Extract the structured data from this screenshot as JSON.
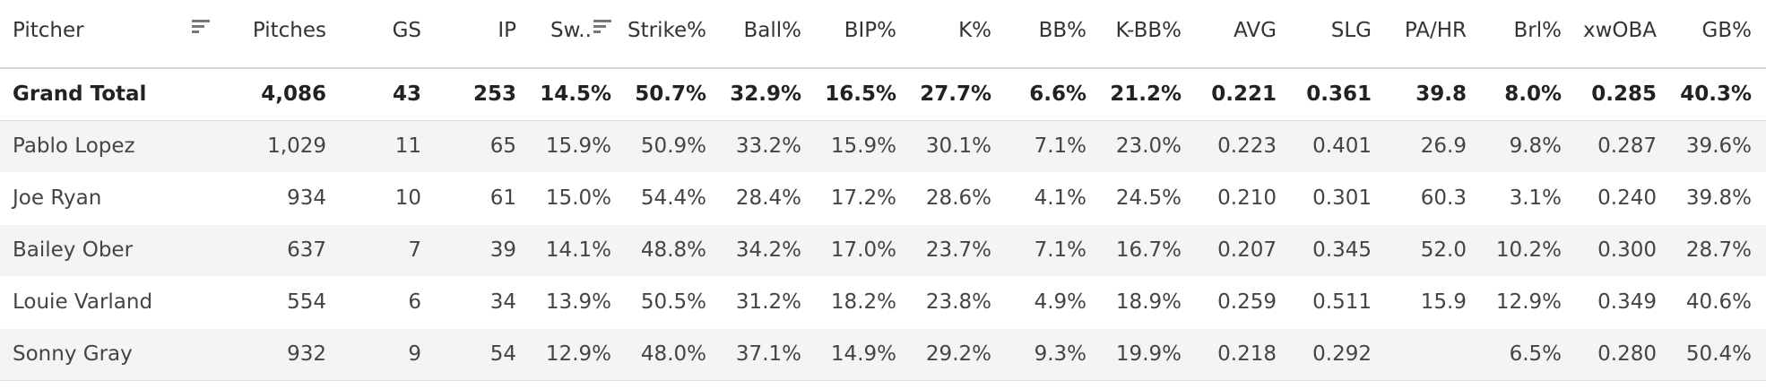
{
  "table": {
    "columns": [
      {
        "key": "pitcher",
        "label": "Pitcher"
      },
      {
        "key": "pitches",
        "label": "Pitches"
      },
      {
        "key": "gs",
        "label": "GS"
      },
      {
        "key": "ip",
        "label": "IP"
      },
      {
        "key": "sw",
        "label": "Sw.."
      },
      {
        "key": "strike",
        "label": "Strike%"
      },
      {
        "key": "ball",
        "label": "Ball%"
      },
      {
        "key": "bip",
        "label": "BIP%"
      },
      {
        "key": "k",
        "label": "K%"
      },
      {
        "key": "bb",
        "label": "BB%"
      },
      {
        "key": "kbb",
        "label": "K-BB%"
      },
      {
        "key": "avg",
        "label": "AVG"
      },
      {
        "key": "slg",
        "label": "SLG"
      },
      {
        "key": "pahr",
        "label": "PA/HR"
      },
      {
        "key": "brl",
        "label": "Brl%"
      },
      {
        "key": "xwoba",
        "label": "xwOBA"
      },
      {
        "key": "gb",
        "label": "GB%"
      }
    ],
    "total": [
      "Grand Total",
      "4,086",
      "43",
      "253",
      "14.5%",
      "50.7%",
      "32.9%",
      "16.5%",
      "27.7%",
      "6.6%",
      "21.2%",
      "0.221",
      "0.361",
      "39.8",
      "8.0%",
      "0.285",
      "40.3%"
    ],
    "rows": [
      [
        "Pablo Lopez",
        "1,029",
        "11",
        "65",
        "15.9%",
        "50.9%",
        "33.2%",
        "15.9%",
        "30.1%",
        "7.1%",
        "23.0%",
        "0.223",
        "0.401",
        "26.9",
        "9.8%",
        "0.287",
        "39.6%"
      ],
      [
        "Joe Ryan",
        "934",
        "10",
        "61",
        "15.0%",
        "54.4%",
        "28.4%",
        "17.2%",
        "28.6%",
        "4.1%",
        "24.5%",
        "0.210",
        "0.301",
        "60.3",
        "3.1%",
        "0.240",
        "39.8%"
      ],
      [
        "Bailey Ober",
        "637",
        "7",
        "39",
        "14.1%",
        "48.8%",
        "34.2%",
        "17.0%",
        "23.7%",
        "7.1%",
        "16.7%",
        "0.207",
        "0.345",
        "52.0",
        "10.2%",
        "0.300",
        "28.7%"
      ],
      [
        "Louie Varland",
        "554",
        "6",
        "34",
        "13.9%",
        "50.5%",
        "31.2%",
        "18.2%",
        "23.8%",
        "4.9%",
        "18.9%",
        "0.259",
        "0.511",
        "15.9",
        "12.9%",
        "0.349",
        "40.6%"
      ],
      [
        "Sonny Gray",
        "932",
        "9",
        "54",
        "12.9%",
        "48.0%",
        "37.1%",
        "14.9%",
        "29.2%",
        "9.3%",
        "19.9%",
        "0.218",
        "0.292",
        "",
        "6.5%",
        "0.280",
        "50.4%"
      ]
    ]
  }
}
